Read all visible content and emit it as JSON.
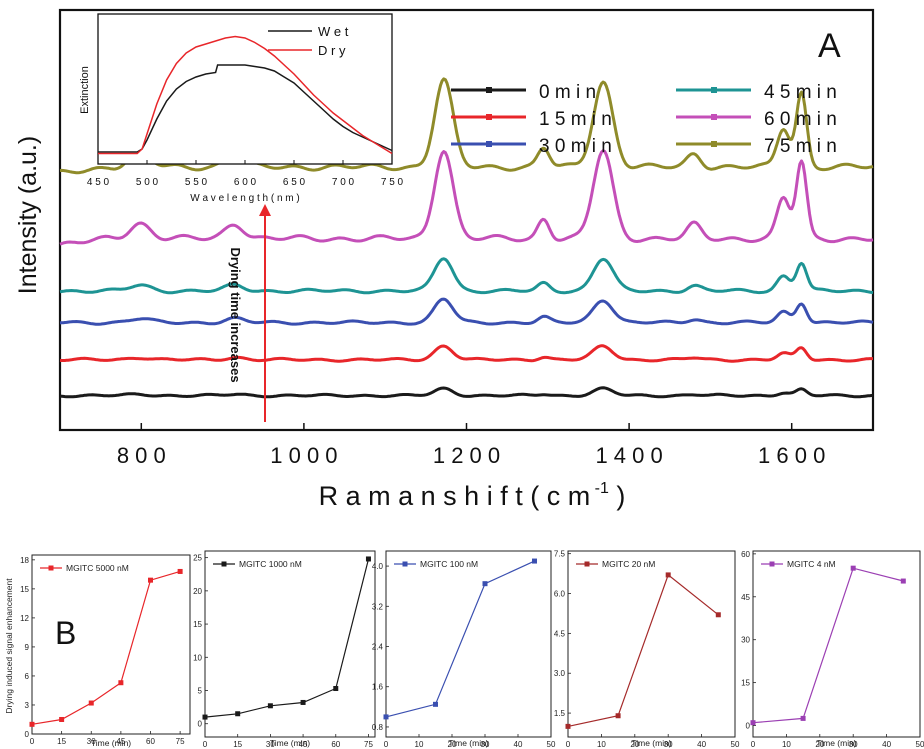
{
  "colors": {
    "black": "#1a1a1a",
    "red": "#e8262a",
    "blue": "#3a4fb0",
    "teal": "#1e9494",
    "magenta": "#c44fb8",
    "olive": "#8f8b2a",
    "darkred": "#a52a2a",
    "purple": "#9b3fb3"
  },
  "chart_data": [
    {
      "panel": "A",
      "type": "line",
      "xlabel": "Raman shift (cm",
      "xlabel_sup": "-1",
      "xlabel_close": ")",
      "ylabel": "Intensity (a.u.)",
      "xlim": [
        700,
        1700
      ],
      "xticks": [
        "800",
        "1000",
        "1200",
        "1400",
        "1600"
      ],
      "xtick_values": [
        800,
        1000,
        1200,
        1400,
        1600
      ],
      "annotation": "Drying time increases",
      "peaks": [
        {
          "x": 798,
          "w": 18,
          "rel": 0.17
        },
        {
          "x": 915,
          "w": 16,
          "rel": 0.17
        },
        {
          "x": 1172,
          "w": 16,
          "rel": 1.0
        },
        {
          "x": 1295,
          "w": 10,
          "rel": 0.22
        },
        {
          "x": 1368,
          "w": 17,
          "rel": 0.98
        },
        {
          "x": 1480,
          "w": 12,
          "rel": 0.15
        },
        {
          "x": 1590,
          "w": 11,
          "rel": 0.45
        },
        {
          "x": 1612,
          "w": 9,
          "rel": 0.85
        }
      ],
      "series": [
        {
          "name": "0 min",
          "color": "#1a1a1a",
          "baseline": 0.0,
          "scale": 0.5
        },
        {
          "name": "15 min",
          "color": "#e8262a",
          "baseline": 2.6,
          "scale": 1.0
        },
        {
          "name": "30 min",
          "color": "#3a4fb0",
          "baseline": 5.3,
          "scale": 1.7
        },
        {
          "name": "45 min",
          "color": "#1e9494",
          "baseline": 7.6,
          "scale": 2.4
        },
        {
          "name": "60 min",
          "color": "#c44fb8",
          "baseline": 11.4,
          "scale": 6.5
        },
        {
          "name": "75 min",
          "color": "#8f8b2a",
          "baseline": 16.6,
          "scale": 6.3
        }
      ],
      "ylim": [
        -2.5,
        28
      ]
    },
    {
      "panel": "inset",
      "type": "line",
      "xlabel": "Wavelength (nm)",
      "ylabel": "Extinction",
      "xlim": [
        450,
        750
      ],
      "xticks": [
        "450",
        "500",
        "550",
        "600",
        "650",
        "700",
        "750"
      ],
      "ylim": [
        0,
        1.0
      ],
      "series": [
        {
          "name": "Wet",
          "color": "#1a1a1a",
          "x": [
            450,
            490,
            495,
            500,
            510,
            520,
            530,
            540,
            550,
            560,
            570,
            572,
            575,
            580,
            590,
            600,
            610,
            620,
            630,
            640,
            650,
            660,
            670,
            680,
            690,
            700,
            710,
            720,
            730,
            740,
            750
          ],
          "y": [
            0.08,
            0.08,
            0.1,
            0.16,
            0.3,
            0.42,
            0.5,
            0.55,
            0.58,
            0.6,
            0.61,
            0.66,
            0.66,
            0.66,
            0.66,
            0.66,
            0.65,
            0.64,
            0.62,
            0.58,
            0.54,
            0.48,
            0.42,
            0.36,
            0.3,
            0.25,
            0.21,
            0.18,
            0.15,
            0.12,
            0.09
          ]
        },
        {
          "name": "Dry",
          "color": "#e8262a",
          "x": [
            450,
            490,
            495,
            500,
            510,
            520,
            530,
            540,
            550,
            560,
            570,
            580,
            590,
            600,
            610,
            620,
            630,
            640,
            650,
            660,
            670,
            680,
            690,
            700,
            710,
            720,
            730,
            740,
            750
          ],
          "y": [
            0.07,
            0.07,
            0.1,
            0.2,
            0.4,
            0.56,
            0.67,
            0.74,
            0.78,
            0.8,
            0.82,
            0.84,
            0.85,
            0.84,
            0.81,
            0.77,
            0.72,
            0.66,
            0.6,
            0.53,
            0.46,
            0.4,
            0.34,
            0.29,
            0.24,
            0.19,
            0.15,
            0.11,
            0.07
          ]
        }
      ]
    },
    {
      "panel": "B1",
      "type": "line",
      "ylabel": "Drying induced signal enhancement",
      "xlabel": "Time (min)",
      "xlim": [
        0,
        80
      ],
      "ylim": [
        0,
        18.5
      ],
      "xticks": [
        "0",
        "15",
        "30",
        "45",
        "60",
        "75"
      ],
      "xtick_values": [
        0,
        15,
        30,
        45,
        60,
        75
      ],
      "yticks": [
        "0",
        "3",
        "6",
        "9",
        "12",
        "15",
        "18"
      ],
      "ytick_values": [
        0,
        3,
        6,
        9,
        12,
        15,
        18
      ],
      "series": [
        {
          "name": "MGITC 5000 nM",
          "color": "#e8262a",
          "x": [
            0,
            15,
            30,
            45,
            60,
            75
          ],
          "y": [
            1.0,
            1.5,
            3.2,
            5.3,
            15.9,
            16.8
          ]
        }
      ]
    },
    {
      "panel": "B2",
      "type": "line",
      "ylabel": "",
      "xlabel": "Time (min)",
      "xlim": [
        0,
        78
      ],
      "ylim": [
        -2,
        26
      ],
      "xticks": [
        "0",
        "15",
        "30",
        "45",
        "60",
        "75"
      ],
      "xtick_values": [
        0,
        15,
        30,
        45,
        60,
        75
      ],
      "yticks": [
        "0",
        "5",
        "10",
        "15",
        "20",
        "25"
      ],
      "ytick_values": [
        0,
        5,
        10,
        15,
        20,
        25
      ],
      "series": [
        {
          "name": "MGITC 1000 nM",
          "color": "#1a1a1a",
          "x": [
            0,
            15,
            30,
            45,
            60,
            75
          ],
          "y": [
            1.0,
            1.5,
            2.7,
            3.2,
            5.3,
            24.8
          ]
        }
      ]
    },
    {
      "panel": "B3",
      "type": "line",
      "ylabel": "",
      "xlabel": "Time (min)",
      "xlim": [
        0,
        50
      ],
      "ylim": [
        0.6,
        4.3
      ],
      "xticks": [
        "0",
        "10",
        "20",
        "30",
        "40",
        "50"
      ],
      "xtick_values": [
        0,
        10,
        20,
        30,
        40,
        50
      ],
      "yticks": [
        "0.8",
        "1.6",
        "2.4",
        "3.2",
        "4.0"
      ],
      "ytick_values": [
        0.8,
        1.6,
        2.4,
        3.2,
        4.0
      ],
      "series": [
        {
          "name": "MGITC 100 nM",
          "color": "#3a4fb0",
          "x": [
            0,
            15,
            30,
            45
          ],
          "y": [
            1.0,
            1.25,
            3.65,
            4.1
          ]
        }
      ]
    },
    {
      "panel": "B4",
      "type": "line",
      "ylabel": "",
      "xlabel": "Time (min)",
      "xlim": [
        0,
        50
      ],
      "ylim": [
        0.6,
        7.6
      ],
      "xticks": [
        "0",
        "10",
        "20",
        "30",
        "40",
        "50"
      ],
      "xtick_values": [
        0,
        10,
        20,
        30,
        40,
        50
      ],
      "yticks": [
        "1.5",
        "3.0",
        "4.5",
        "6.0",
        "7.5"
      ],
      "ytick_values": [
        1.5,
        3.0,
        4.5,
        6.0,
        7.5
      ],
      "series": [
        {
          "name": "MGITC 20 nM",
          "color": "#a52a2a",
          "x": [
            0,
            15,
            30,
            45
          ],
          "y": [
            1.0,
            1.4,
            6.7,
            5.2
          ]
        }
      ]
    },
    {
      "panel": "B5",
      "type": "line",
      "ylabel": "",
      "xlabel": "Time (min)",
      "xlim": [
        0,
        50
      ],
      "ylim": [
        -4,
        61
      ],
      "xticks": [
        "0",
        "10",
        "20",
        "30",
        "40",
        "50"
      ],
      "xtick_values": [
        0,
        10,
        20,
        30,
        40,
        50
      ],
      "yticks": [
        "0",
        "15",
        "30",
        "45",
        "60"
      ],
      "ytick_values": [
        0,
        15,
        30,
        45,
        60
      ],
      "series": [
        {
          "name": "MGITC 4 nM",
          "color": "#9b3fb3",
          "x": [
            0,
            15,
            30,
            45
          ],
          "y": [
            1.0,
            2.5,
            55.0,
            50.5
          ]
        }
      ]
    }
  ],
  "panel_labels": {
    "a": "A",
    "b": "B"
  }
}
